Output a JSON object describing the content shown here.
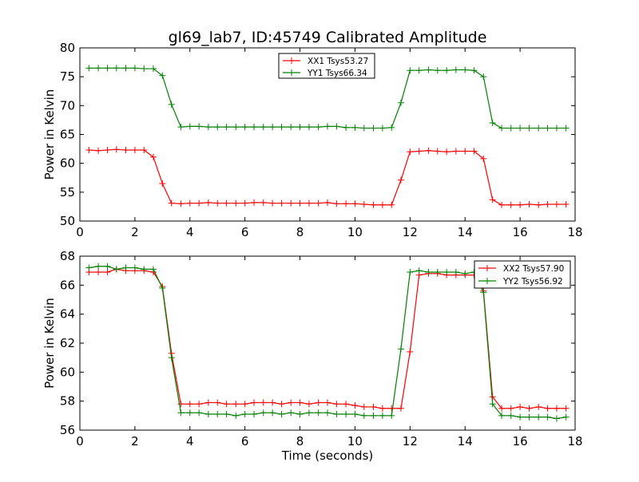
{
  "title": "gl69_lab7, ID:45749 Calibrated Amplitude",
  "chart_data": [
    {
      "type": "line",
      "ylabel": "Power in Kelvin",
      "xlabel": "",
      "xlim": [
        0,
        18
      ],
      "ylim": [
        50,
        80
      ],
      "xticks": [
        0,
        2,
        4,
        6,
        8,
        10,
        12,
        14,
        16,
        18
      ],
      "yticks": [
        50,
        55,
        60,
        65,
        70,
        75,
        80
      ],
      "grid": false,
      "legend_position": "upper center",
      "x": [
        0.33,
        0.67,
        1.0,
        1.33,
        1.67,
        2.0,
        2.33,
        2.67,
        3.0,
        3.33,
        3.67,
        4.0,
        4.33,
        4.67,
        5.0,
        5.33,
        5.67,
        6.0,
        6.33,
        6.67,
        7.0,
        7.33,
        7.67,
        8.0,
        8.33,
        8.67,
        9.0,
        9.33,
        9.67,
        10.0,
        10.33,
        10.67,
        11.0,
        11.33,
        11.67,
        12.0,
        12.33,
        12.67,
        13.0,
        13.33,
        13.67,
        14.0,
        14.33,
        14.67,
        15.0,
        15.33,
        15.67,
        16.0,
        16.33,
        16.67,
        17.0,
        17.33,
        17.67
      ],
      "series": [
        {
          "name": "XX1 Tsys53.27",
          "color": "#ff0000",
          "values": [
            62.3,
            62.2,
            62.3,
            62.4,
            62.3,
            62.3,
            62.3,
            61.1,
            56.5,
            53.1,
            53.0,
            53.1,
            53.1,
            53.2,
            53.1,
            53.1,
            53.1,
            53.1,
            53.2,
            53.2,
            53.1,
            53.1,
            53.1,
            53.1,
            53.1,
            53.1,
            53.2,
            53.0,
            53.0,
            53.0,
            52.9,
            52.8,
            52.8,
            52.8,
            57.1,
            62.0,
            62.1,
            62.2,
            62.1,
            62.0,
            62.1,
            62.1,
            62.1,
            60.8,
            53.7,
            52.8,
            52.8,
            52.8,
            52.9,
            52.8,
            52.9,
            52.9,
            52.9
          ]
        },
        {
          "name": "YY1 Tsys66.34",
          "color": "#008000",
          "values": [
            76.5,
            76.5,
            76.5,
            76.5,
            76.5,
            76.5,
            76.4,
            76.4,
            75.2,
            70.2,
            66.3,
            66.4,
            66.4,
            66.3,
            66.3,
            66.3,
            66.3,
            66.3,
            66.3,
            66.3,
            66.3,
            66.3,
            66.3,
            66.3,
            66.3,
            66.3,
            66.4,
            66.4,
            66.2,
            66.2,
            66.1,
            66.1,
            66.1,
            66.2,
            70.5,
            76.1,
            76.1,
            76.2,
            76.1,
            76.1,
            76.2,
            76.2,
            76.1,
            75.0,
            67.0,
            66.1,
            66.1,
            66.1,
            66.1,
            66.1,
            66.1,
            66.1,
            66.1
          ]
        }
      ]
    },
    {
      "type": "line",
      "ylabel": "Power in Kelvin",
      "xlabel": "Time (seconds)",
      "xlim": [
        0,
        18
      ],
      "ylim": [
        56,
        68
      ],
      "xticks": [
        0,
        2,
        4,
        6,
        8,
        10,
        12,
        14,
        16,
        18
      ],
      "yticks": [
        56,
        58,
        60,
        62,
        64,
        66,
        68
      ],
      "grid": false,
      "legend_position": "upper right",
      "x": [
        0.33,
        0.67,
        1.0,
        1.33,
        1.67,
        2.0,
        2.33,
        2.67,
        3.0,
        3.33,
        3.67,
        4.0,
        4.33,
        4.67,
        5.0,
        5.33,
        5.67,
        6.0,
        6.33,
        6.67,
        7.0,
        7.33,
        7.67,
        8.0,
        8.33,
        8.67,
        9.0,
        9.33,
        9.67,
        10.0,
        10.33,
        10.67,
        11.0,
        11.33,
        11.67,
        12.0,
        12.33,
        12.67,
        13.0,
        13.33,
        13.67,
        14.0,
        14.33,
        14.67,
        15.0,
        15.33,
        15.67,
        16.0,
        16.33,
        16.67,
        17.0,
        17.33,
        17.67
      ],
      "series": [
        {
          "name": "XX2 Tsys57.90",
          "color": "#ff0000",
          "values": [
            66.9,
            66.9,
            66.9,
            67.1,
            67.0,
            67.0,
            67.0,
            66.9,
            65.9,
            61.3,
            57.8,
            57.8,
            57.8,
            57.9,
            57.9,
            57.8,
            57.8,
            57.8,
            57.9,
            57.9,
            57.9,
            57.8,
            57.9,
            57.9,
            57.8,
            57.9,
            57.9,
            57.8,
            57.8,
            57.7,
            57.6,
            57.6,
            57.5,
            57.5,
            57.5,
            61.4,
            66.7,
            66.8,
            66.8,
            66.7,
            66.7,
            66.7,
            66.7,
            65.6,
            58.3,
            57.5,
            57.5,
            57.6,
            57.5,
            57.6,
            57.5,
            57.5,
            57.5
          ]
        },
        {
          "name": "YY2 Tsys56.92",
          "color": "#008000",
          "values": [
            67.2,
            67.3,
            67.3,
            67.1,
            67.2,
            67.2,
            67.1,
            67.1,
            65.8,
            61.0,
            57.2,
            57.2,
            57.2,
            57.1,
            57.1,
            57.1,
            57.0,
            57.1,
            57.1,
            57.2,
            57.2,
            57.1,
            57.2,
            57.1,
            57.2,
            57.2,
            57.2,
            57.1,
            57.1,
            57.1,
            57.0,
            57.0,
            57.0,
            57.0,
            61.6,
            66.9,
            67.0,
            66.9,
            66.9,
            66.9,
            66.9,
            66.8,
            66.9,
            65.5,
            57.8,
            57.0,
            57.0,
            56.9,
            56.9,
            56.9,
            56.9,
            56.8,
            56.9
          ]
        }
      ]
    }
  ]
}
